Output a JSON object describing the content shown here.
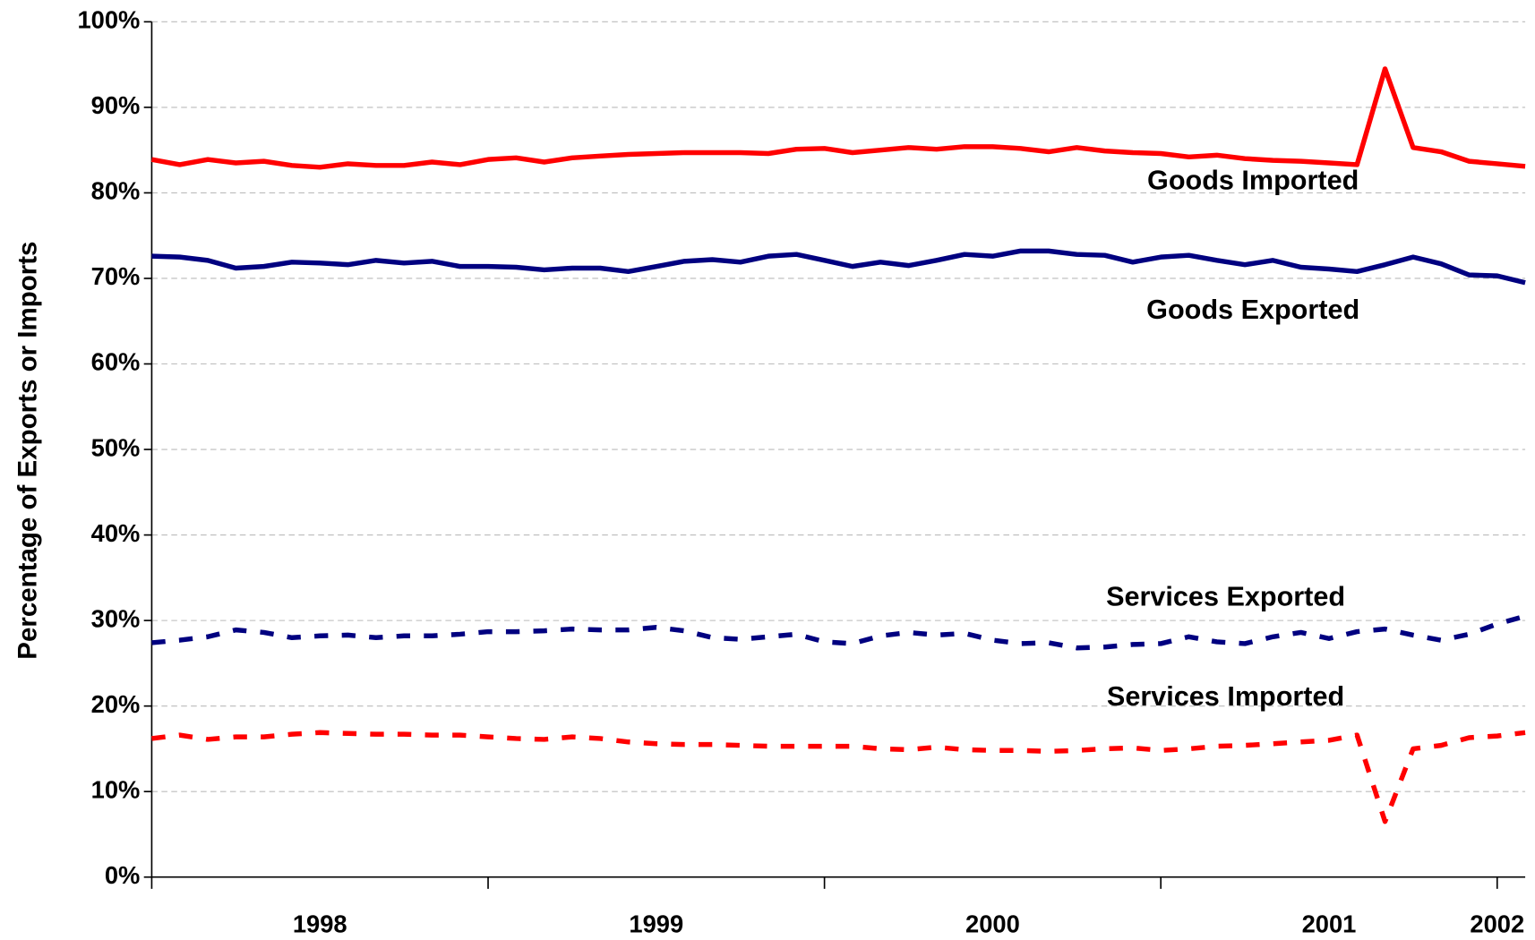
{
  "chart_data": {
    "type": "line",
    "y_label": "Percentage of Exports or Imports",
    "categories": [
      null,
      null,
      null,
      null,
      null,
      null,
      "1998",
      null,
      null,
      null,
      null,
      null,
      null,
      null,
      null,
      null,
      null,
      null,
      "1999",
      null,
      null,
      null,
      null,
      null,
      null,
      null,
      null,
      null,
      null,
      null,
      "2000",
      null,
      null,
      null,
      null,
      null,
      null,
      null,
      null,
      null,
      null,
      null,
      "2001",
      null,
      null,
      null,
      null,
      null,
      "2002",
      null
    ],
    "ylim": [
      0,
      100
    ],
    "yticks": [
      {
        "value": 0,
        "label": "0%"
      },
      {
        "value": 10,
        "label": "10%"
      },
      {
        "value": 20,
        "label": "20%"
      },
      {
        "value": 30,
        "label": "30%"
      },
      {
        "value": 40,
        "label": "40%"
      },
      {
        "value": 50,
        "label": "50%"
      },
      {
        "value": 60,
        "label": "60%"
      },
      {
        "value": 70,
        "label": "70%"
      },
      {
        "value": 80,
        "label": "80%"
      },
      {
        "value": 90,
        "label": "90%"
      },
      {
        "value": 100,
        "label": "100%"
      }
    ],
    "grid": true,
    "series": [
      {
        "name": "Goods Imported",
        "color": "#ff0000",
        "dashed": false,
        "values": [
          83.9,
          83.3,
          83.9,
          83.5,
          83.7,
          83.2,
          83.0,
          83.4,
          83.2,
          83.2,
          83.6,
          83.3,
          83.9,
          84.1,
          83.6,
          84.1,
          84.3,
          84.5,
          84.6,
          84.7,
          84.7,
          84.7,
          84.6,
          85.1,
          85.2,
          84.7,
          85.0,
          85.3,
          85.1,
          85.4,
          85.4,
          85.2,
          84.8,
          85.3,
          84.9,
          84.7,
          84.6,
          84.2,
          84.4,
          84.0,
          83.8,
          83.7,
          83.5,
          83.3,
          94.5,
          85.3,
          84.8,
          83.7,
          83.4,
          83.1
        ]
      },
      {
        "name": "Goods Exported",
        "color": "#000080",
        "dashed": false,
        "values": [
          72.6,
          72.5,
          72.1,
          71.2,
          71.4,
          71.9,
          71.8,
          71.6,
          72.1,
          71.8,
          72.0,
          71.4,
          71.4,
          71.3,
          71.0,
          71.2,
          71.2,
          70.8,
          71.4,
          72.0,
          72.2,
          71.9,
          72.6,
          72.8,
          72.1,
          71.4,
          71.9,
          71.5,
          72.1,
          72.8,
          72.6,
          73.2,
          73.2,
          72.8,
          72.7,
          71.9,
          72.5,
          72.7,
          72.1,
          71.6,
          72.1,
          71.3,
          71.1,
          70.8,
          71.6,
          72.5,
          71.7,
          70.4,
          70.3,
          69.5
        ]
      },
      {
        "name": "Services Exported",
        "color": "#000080",
        "dashed": true,
        "values": [
          27.4,
          27.7,
          28.1,
          28.9,
          28.6,
          28.0,
          28.2,
          28.3,
          28.0,
          28.2,
          28.2,
          28.4,
          28.7,
          28.7,
          28.8,
          29.0,
          28.9,
          28.9,
          29.2,
          28.8,
          28.0,
          27.8,
          28.1,
          28.4,
          27.5,
          27.3,
          28.2,
          28.6,
          28.3,
          28.5,
          27.7,
          27.3,
          27.4,
          26.8,
          26.9,
          27.2,
          27.3,
          28.1,
          27.5,
          27.3,
          28.1,
          28.6,
          27.9,
          28.7,
          29.0,
          28.3,
          27.7,
          28.4,
          29.6,
          30.5
        ]
      },
      {
        "name": "Services Imported",
        "color": "#ff0000",
        "dashed": true,
        "values": [
          16.2,
          16.6,
          16.1,
          16.4,
          16.4,
          16.7,
          16.9,
          16.8,
          16.7,
          16.7,
          16.6,
          16.6,
          16.4,
          16.2,
          16.1,
          16.4,
          16.2,
          15.8,
          15.6,
          15.5,
          15.5,
          15.4,
          15.3,
          15.3,
          15.3,
          15.3,
          15.0,
          14.9,
          15.2,
          14.9,
          14.8,
          14.8,
          14.7,
          14.8,
          15.0,
          15.1,
          14.8,
          15.0,
          15.3,
          15.4,
          15.6,
          15.8,
          16.0,
          16.6,
          6.5,
          15.0,
          15.4,
          16.3,
          16.5,
          16.9
        ]
      }
    ]
  }
}
